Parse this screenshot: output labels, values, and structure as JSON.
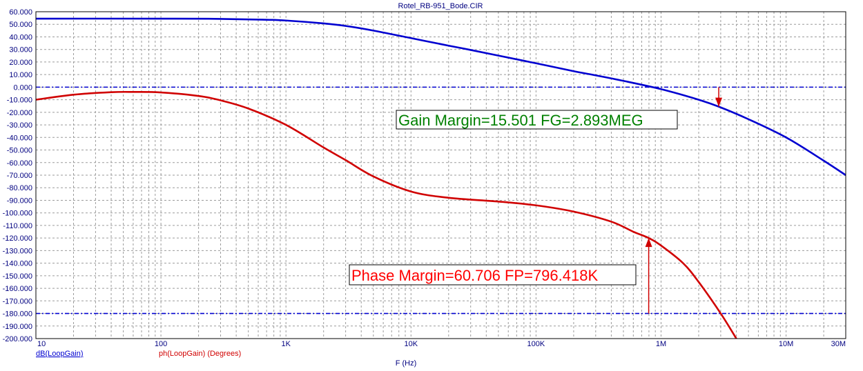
{
  "window": {
    "title": "Rotel_RB-951_Bode.CIR"
  },
  "chart_data": {
    "type": "line",
    "title": "Rotel_RB-951_Bode.CIR",
    "xlabel": "F (Hz)",
    "ylabel": "",
    "xscale": "log",
    "xlim": [
      10,
      30000000
    ],
    "ylim": [
      -200,
      60
    ],
    "grid": true,
    "x_ticks": [
      {
        "value": 10,
        "label": "10"
      },
      {
        "value": 100,
        "label": "100"
      },
      {
        "value": 1000,
        "label": "1K"
      },
      {
        "value": 10000,
        "label": "10K"
      },
      {
        "value": 100000,
        "label": "100K"
      },
      {
        "value": 1000000,
        "label": "1M"
      },
      {
        "value": 10000000,
        "label": "10M"
      },
      {
        "value": 30000000,
        "label": "30M"
      }
    ],
    "y_ticks": [
      "60.000",
      "50.000",
      "40.000",
      "30.000",
      "20.000",
      "10.000",
      "0.000",
      "-10.000",
      "-20.000",
      "-30.000",
      "-40.000",
      "-50.000",
      "-60.000",
      "-70.000",
      "-80.000",
      "-90.000",
      "-100.000",
      "-110.000",
      "-120.000",
      "-130.000",
      "-140.000",
      "-150.000",
      "-160.000",
      "-170.000",
      "-180.000",
      "-190.000",
      "-200.000"
    ],
    "series": [
      {
        "name": "dB(LoopGain)",
        "color": "#0000d0",
        "x": [
          10,
          100,
          300,
          700,
          1000,
          2000,
          3000,
          5000,
          10000,
          20000,
          30000,
          50000,
          100000,
          200000,
          300000,
          500000,
          1000000,
          2000000,
          2893000,
          5000000,
          10000000,
          20000000,
          30000000
        ],
        "y": [
          54.5,
          54.5,
          54.3,
          53.6,
          53,
          50.7,
          48.7,
          45,
          39,
          33,
          29.6,
          25.1,
          19,
          12.7,
          9.4,
          5,
          -1.6,
          -10,
          -15.5,
          -25.5,
          -40,
          -58.5,
          -70
        ]
      },
      {
        "name": "ph(LoopGain) (Degrees)",
        "color": "#d00000",
        "x": [
          10,
          20,
          40,
          60,
          100,
          200,
          300,
          500,
          1000,
          2000,
          3000,
          5000,
          10000,
          20000,
          50000,
          100000,
          200000,
          400000,
          600000,
          796418,
          1000000,
          1500000,
          2000000,
          3000000,
          4000000
        ],
        "y": [
          -10,
          -6,
          -4,
          -3.8,
          -4.2,
          -7,
          -10.5,
          -17,
          -30,
          -48,
          -58,
          -71,
          -83,
          -88,
          -91,
          -94,
          -99,
          -107,
          -115,
          -120,
          -126,
          -140,
          -155,
          -180,
          -200
        ]
      }
    ],
    "reference_lines": [
      {
        "y": 0,
        "color": "#0000d0"
      },
      {
        "y": -180,
        "color": "#0000d0"
      }
    ],
    "markers": [
      {
        "name": "gain-margin-arrow",
        "x": 2893000,
        "y_from": 0,
        "y_to": -15.5,
        "color": "#d00000"
      },
      {
        "name": "phase-margin-arrow",
        "x": 796418,
        "y_from": -180,
        "y_to": -120,
        "color": "#d00000"
      }
    ],
    "annotations": {
      "gain_margin": "Gain Margin=15.501 FG=2.893MEG",
      "phase_margin": "Phase Margin=60.706 FP=796.418K"
    },
    "legend": {
      "gain": "dB(LoopGain)",
      "phase": "ph(LoopGain) (Degrees)"
    }
  }
}
